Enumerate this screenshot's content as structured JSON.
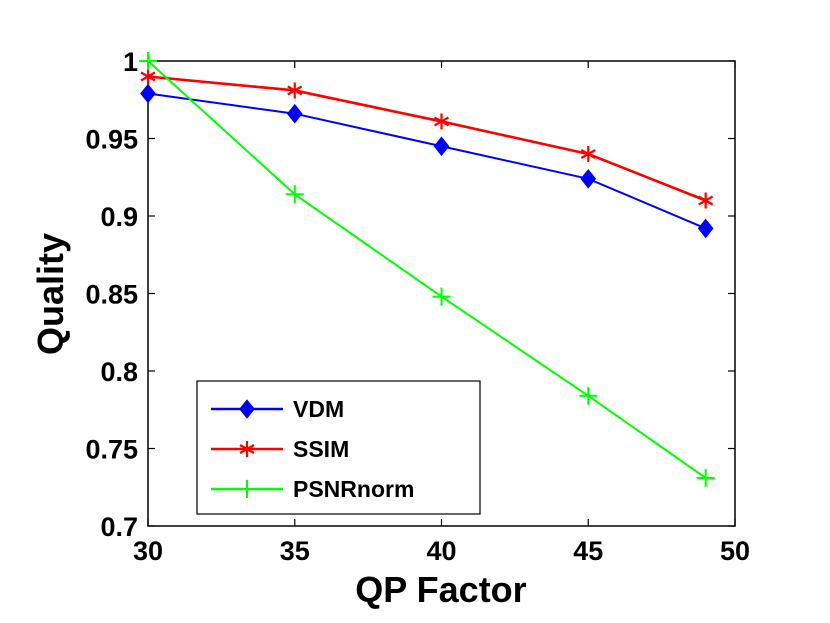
{
  "chart_data": {
    "type": "line",
    "title": "",
    "xlabel": "QP Factor",
    "ylabel": "Quality",
    "xlim": [
      30,
      50
    ],
    "ylim": [
      0.7,
      1.0
    ],
    "xticks": [
      30,
      35,
      40,
      45,
      50
    ],
    "yticks": [
      0.7,
      0.75,
      0.8,
      0.85,
      0.9,
      0.95,
      1
    ],
    "xtick_labels": [
      "30",
      "35",
      "40",
      "45",
      "50"
    ],
    "ytick_labels": [
      "0.7",
      "0.75",
      "0.8",
      "0.85",
      "0.9",
      "0.95",
      "1"
    ],
    "grid": false,
    "legend_position": "bottom-left",
    "series": [
      {
        "name": "VDM",
        "color": "#0000ff",
        "marker": "diamond",
        "x": [
          30,
          35,
          40,
          45,
          49
        ],
        "values": [
          0.979,
          0.966,
          0.945,
          0.924,
          0.892
        ]
      },
      {
        "name": "SSIM",
        "color": "#ff0000",
        "marker": "asterisk",
        "x": [
          30,
          35,
          40,
          45,
          49
        ],
        "values": [
          0.99,
          0.981,
          0.961,
          0.94,
          0.91
        ]
      },
      {
        "name": "PSNRnorm",
        "color": "#00ff00",
        "marker": "plus",
        "x": [
          30,
          35,
          40,
          45,
          49
        ],
        "values": [
          1.0,
          0.914,
          0.848,
          0.784,
          0.731
        ]
      }
    ]
  }
}
